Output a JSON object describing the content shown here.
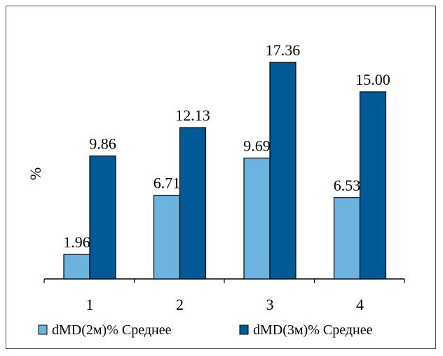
{
  "chart_data": {
    "type": "bar",
    "categories": [
      "1",
      "2",
      "3",
      "4"
    ],
    "series": [
      {
        "name": "dMD(2м)% Среднее",
        "values": [
          1.96,
          6.71,
          9.69,
          6.53
        ],
        "labels": [
          "1.96",
          "6.71",
          "9.69",
          "6.53"
        ],
        "color": "#6cb3e0"
      },
      {
        "name": "dMD(3м)% Среднее",
        "values": [
          9.86,
          12.13,
          17.36,
          15.0
        ],
        "labels": [
          "9.86",
          "12.13",
          "17.36",
          "15.00"
        ],
        "color": "#005a96"
      }
    ],
    "ylabel": "%",
    "xlabel": "",
    "grid": false,
    "legend_position": "bottom"
  }
}
